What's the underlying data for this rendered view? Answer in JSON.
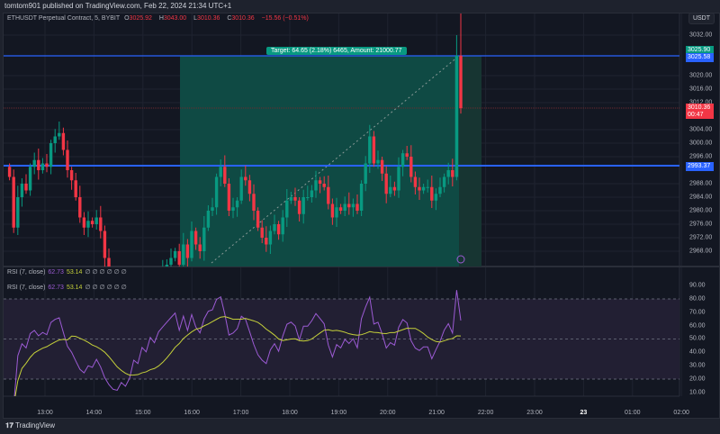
{
  "header": {
    "published": "tomtom901 published on TradingView.com, Feb 22, 2024 21:34 UTC+1"
  },
  "legend": {
    "symbol": "ETHUSDT Perpetual Contract, 5, BYBIT",
    "o_label": "O",
    "o": "3025.92",
    "h_label": "H",
    "h": "3043.00",
    "l_label": "L",
    "l": "3010.36",
    "c_label": "C",
    "c": "3010.36",
    "change": "−15.56 (−0.51%)"
  },
  "rsi_legend": {
    "name": "RSI (7, close)",
    "rsi": "62.73",
    "ma": "53.14",
    "placeholders": "∅ ∅ ∅ ∅ ∅ ∅"
  },
  "price_axis": {
    "currency": "USDT",
    "labels": [
      "3032.00",
      "3020.00",
      "3016.00",
      "3012.00",
      "3004.00",
      "3000.00",
      "2996.00",
      "2988.00",
      "2984.00",
      "2980.00",
      "2976.00",
      "2972.00",
      "2968.00"
    ],
    "badges": {
      "target_price": "3025.90",
      "line_top": "3025.58",
      "last_price": "3010.36",
      "countdown": "00:47",
      "line_bottom": "2993.37"
    }
  },
  "rsi_axis": {
    "labels": [
      "90.00",
      "80.00",
      "70.00",
      "60.00",
      "50.00",
      "40.00",
      "30.00",
      "20.00",
      "10.00"
    ]
  },
  "time_axis": {
    "labels": [
      "13:00",
      "14:00",
      "15:00",
      "16:00",
      "17:00",
      "18:00",
      "19:00",
      "20:00",
      "21:00",
      "22:00",
      "23:00",
      "23",
      "01:00",
      "02:00"
    ]
  },
  "target_label": "Target: 64.65 (2.18%) 6465, Amount: 21000.77",
  "footer": {
    "brand": "TradingView"
  },
  "colors": {
    "up": "#089981",
    "down": "#f23645",
    "line": "#2962ff",
    "rsi": "#9c5bd4",
    "ma": "#c6d13a",
    "zone": "#0f4a44"
  },
  "chart_data": {
    "type": "candlestick",
    "interval": "5m",
    "price_range": [
      2966,
      3034
    ],
    "closes": [
      2990,
      2975,
      2984,
      2988,
      2986,
      2993,
      2995,
      2992,
      2994,
      2993,
      3000,
      3002,
      3003,
      2998,
      2992,
      2989,
      2984,
      2978,
      2975,
      2977,
      2976,
      2978,
      2974,
      2966,
      2958,
      2950,
      2948,
      2950,
      2945,
      2947,
      2952,
      2950,
      2955,
      2953,
      2958,
      2956,
      2960,
      2962,
      2964,
      2966,
      2968,
      2964,
      2970,
      2966,
      2974,
      2970,
      2968,
      2975,
      2980,
      2981,
      2990,
      2993,
      2988,
      2980,
      2981,
      2983,
      2990,
      2989,
      2985,
      2980,
      2975,
      2972,
      2970,
      2974,
      2976,
      2973,
      2978,
      2983,
      2984,
      2983,
      2979,
      2984,
      2984,
      2986,
      2989,
      2988,
      2987,
      2982,
      2978,
      2981,
      2980,
      2982,
      2981,
      2982,
      2980,
      2988,
      2994,
      3002,
      2994,
      2995,
      2991,
      2985,
      2987,
      2986,
      2993,
      2997,
      2996,
      2990,
      2987,
      2986,
      2987,
      2987,
      2983,
      2985,
      2987,
      2990,
      2992,
      2990,
      3025.92,
      3010.36
    ],
    "last_high": 3043.0
  }
}
